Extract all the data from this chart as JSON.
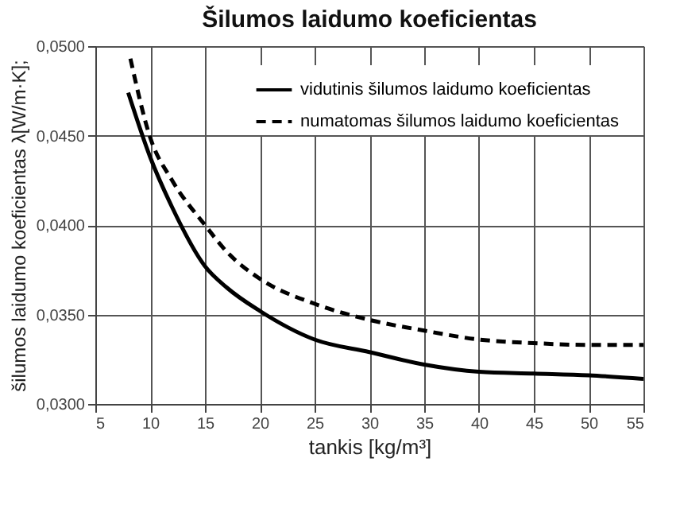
{
  "chart_data": {
    "type": "line",
    "title": "Šilumos laidumo koeficientas",
    "xlabel": "tankis [kg/m³]",
    "ylabel": "šilumos laidumo koeficientas λ[W/m·K];",
    "xlim": [
      5,
      55
    ],
    "xticks": [
      5,
      10,
      15,
      20,
      25,
      30,
      35,
      40,
      45,
      50,
      55
    ],
    "ylim": [
      0.03,
      0.05
    ],
    "yticks": [
      {
        "value": 0.03,
        "label": "0,0300"
      },
      {
        "value": 0.035,
        "label": "0,0350"
      },
      {
        "value": 0.04,
        "label": "0,0400"
      },
      {
        "value": 0.045,
        "label": "0,0450"
      },
      {
        "value": 0.05,
        "label": "0,0500"
      }
    ],
    "grid": true,
    "legend": "top right",
    "marker": "none",
    "series": [
      {
        "name": "vidutinis šilumos laidumo koeficientas",
        "color": "#000000",
        "line_style": "solid",
        "x": [
          8,
          10,
          12,
          15,
          17,
          20,
          25,
          30,
          35,
          40,
          45,
          50,
          55
        ],
        "values": [
          0.0474,
          0.0438,
          0.041,
          0.0377,
          0.0365,
          0.0352,
          0.0336,
          0.0329,
          0.0322,
          0.0318,
          0.0317,
          0.0316,
          0.0314
        ]
      },
      {
        "name": "numatomas šilumos laidumo koeficientas",
        "color": "#000000",
        "line_style": "dashed",
        "x": [
          8.2,
          10,
          12,
          15,
          17,
          20,
          25,
          30,
          35,
          40,
          45,
          50,
          55
        ],
        "values": [
          0.0493,
          0.0449,
          0.0425,
          0.04,
          0.0385,
          0.037,
          0.0356,
          0.0347,
          0.0341,
          0.0336,
          0.0334,
          0.0333,
          0.0333
        ]
      }
    ]
  }
}
